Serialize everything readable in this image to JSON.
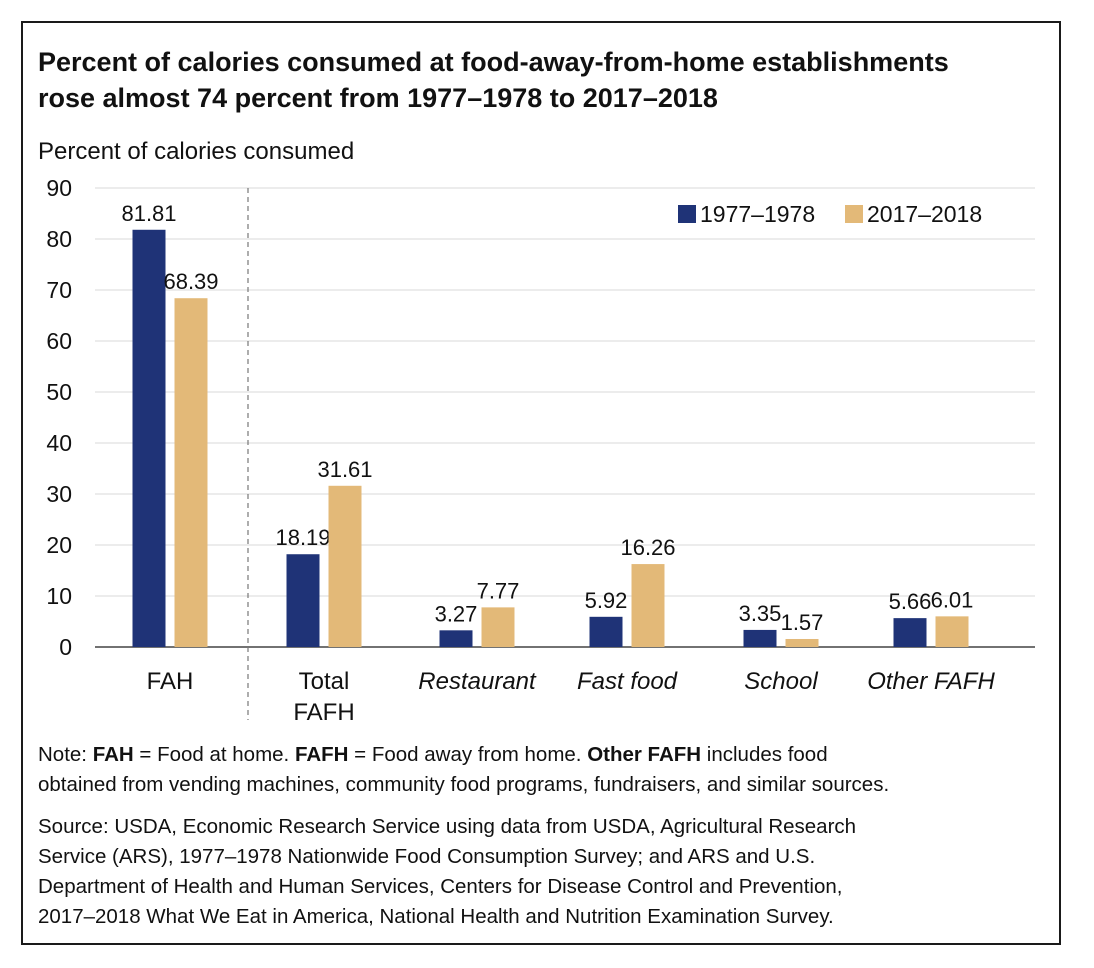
{
  "title": {
    "line1": "Percent of calories consumed at food-away-from-home establishments",
    "line2": "rose almost 74 percent from 1977–1978 to 2017–2018"
  },
  "note": {
    "prefix": "Note: ",
    "term1": "FAH",
    "def1": " = Food at home. ",
    "term2": "FAFH",
    "def2": " = Food away from home. ",
    "term3": "Other FAFH",
    "def3_line1": " includes food",
    "def3_line2": "obtained from vending machines, community food programs, fundraisers, and similar sources."
  },
  "source": {
    "lines": [
      "Source: USDA, Economic Research Service using data from USDA, Agricultural Research",
      "Service (ARS), 1977–1978 Nationwide Food Consumption Survey; and ARS and U.S.",
      "Department of Health and Human Services, Centers for Disease Control and Prevention,",
      "2017–2018 What We Eat in America, National Health and Nutrition Examination Survey."
    ]
  },
  "colors": {
    "series_1977": "#1f3377",
    "series_2017": "#e3b978",
    "grid": "#d9d9d9",
    "axis": "#444444"
  },
  "chart_data": {
    "type": "bar",
    "title": "Percent of calories consumed at food-away-from-home establishments rose almost 74 percent from 1977–1978 to 2017–2018",
    "ylabel": "Percent of calories consumed",
    "xlabel": "",
    "ylim": [
      0,
      90
    ],
    "yticks": [
      0,
      10,
      20,
      30,
      40,
      50,
      60,
      70,
      80,
      90
    ],
    "grid": true,
    "legend_position": "top-right",
    "categories": [
      "FAH",
      "Total FAFH",
      "Restaurant",
      "Fast food",
      "School",
      "Other FAFH"
    ],
    "category_styles": [
      "normal",
      "normal",
      "italic",
      "italic",
      "italic",
      "italic"
    ],
    "separator_after_category": "FAH",
    "series": [
      {
        "name": "1977–1978",
        "values": [
          81.81,
          18.19,
          3.27,
          5.92,
          3.35,
          5.66
        ]
      },
      {
        "name": "2017–2018",
        "values": [
          68.39,
          31.61,
          7.77,
          16.26,
          1.57,
          6.01
        ]
      }
    ],
    "data_labels": [
      [
        "81.81",
        "18.19",
        "3.27",
        "5.92",
        "3.35",
        "5.66"
      ],
      [
        "68.39",
        "31.61",
        "7.77",
        "16.26",
        "1.57",
        "6.01"
      ]
    ]
  }
}
